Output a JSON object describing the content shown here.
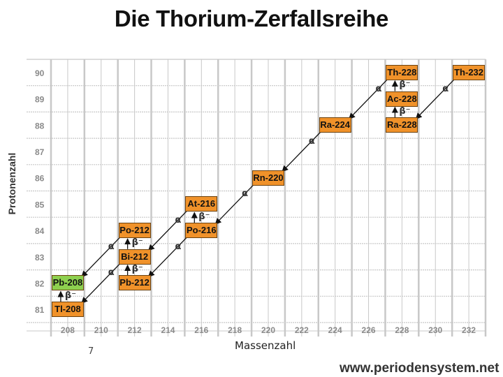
{
  "title": "Die Thorium-Zerfallsreihe",
  "ylabel": "Protonenzahl",
  "xlabel": "Massenzahl",
  "page_number": "7",
  "source": "www.periodensystem.net",
  "colors": {
    "nuclide": "#f0922a",
    "stable": "#8ed04f",
    "grid": "#c8c8c8",
    "arrow": "#111111"
  },
  "chart_data": {
    "type": "decay-chart",
    "xlabel": "Massenzahl",
    "ylabel": "Protonenzahl",
    "x_ticks": [
      208,
      210,
      212,
      214,
      216,
      218,
      220,
      222,
      224,
      226,
      228,
      230,
      232
    ],
    "y_ticks": [
      90,
      89,
      88,
      87,
      86,
      85,
      84,
      83,
      82,
      81
    ],
    "xlim": [
      207,
      233
    ],
    "ylim": [
      80.5,
      90.5
    ],
    "grid": true,
    "nuclides": [
      {
        "label": "Th-228",
        "A": 228,
        "Z": 90,
        "stable": false
      },
      {
        "label": "Th-232",
        "A": 232,
        "Z": 90,
        "stable": false
      },
      {
        "label": "Ac-228",
        "A": 228,
        "Z": 89,
        "stable": false
      },
      {
        "label": "Ra-224",
        "A": 224,
        "Z": 88,
        "stable": false
      },
      {
        "label": "Ra-228",
        "A": 228,
        "Z": 88,
        "stable": false
      },
      {
        "label": "Rn-220",
        "A": 220,
        "Z": 86,
        "stable": false
      },
      {
        "label": "At-216",
        "A": 216,
        "Z": 85,
        "stable": false
      },
      {
        "label": "Po-212",
        "A": 212,
        "Z": 84,
        "stable": false
      },
      {
        "label": "Po-216",
        "A": 216,
        "Z": 84,
        "stable": false
      },
      {
        "label": "Bi-212",
        "A": 212,
        "Z": 83,
        "stable": false
      },
      {
        "label": "Pb-208",
        "A": 208,
        "Z": 82,
        "stable": true
      },
      {
        "label": "Pb-212",
        "A": 212,
        "Z": 82,
        "stable": false
      },
      {
        "label": "Tl-208",
        "A": 208,
        "Z": 81,
        "stable": false
      }
    ],
    "decays": [
      {
        "from": "Th-232",
        "to": "Ra-228",
        "mode": "α"
      },
      {
        "from": "Ra-228",
        "to": "Ac-228",
        "mode": "β⁻"
      },
      {
        "from": "Ac-228",
        "to": "Th-228",
        "mode": "β⁻"
      },
      {
        "from": "Th-228",
        "to": "Ra-224",
        "mode": "α"
      },
      {
        "from": "Ra-224",
        "to": "Rn-220",
        "mode": "α"
      },
      {
        "from": "Rn-220",
        "to": "Po-216",
        "mode": "α"
      },
      {
        "from": "Po-216",
        "to": "At-216",
        "mode": "β⁻"
      },
      {
        "from": "Po-216",
        "to": "Pb-212",
        "mode": "α"
      },
      {
        "from": "At-216",
        "to": "Bi-212",
        "mode": "α"
      },
      {
        "from": "Pb-212",
        "to": "Bi-212",
        "mode": "β⁻"
      },
      {
        "from": "Bi-212",
        "to": "Po-212",
        "mode": "β⁻"
      },
      {
        "from": "Bi-212",
        "to": "Tl-208",
        "mode": "α"
      },
      {
        "from": "Po-212",
        "to": "Pb-208",
        "mode": "α"
      },
      {
        "from": "Tl-208",
        "to": "Pb-208",
        "mode": "β⁻"
      }
    ]
  }
}
